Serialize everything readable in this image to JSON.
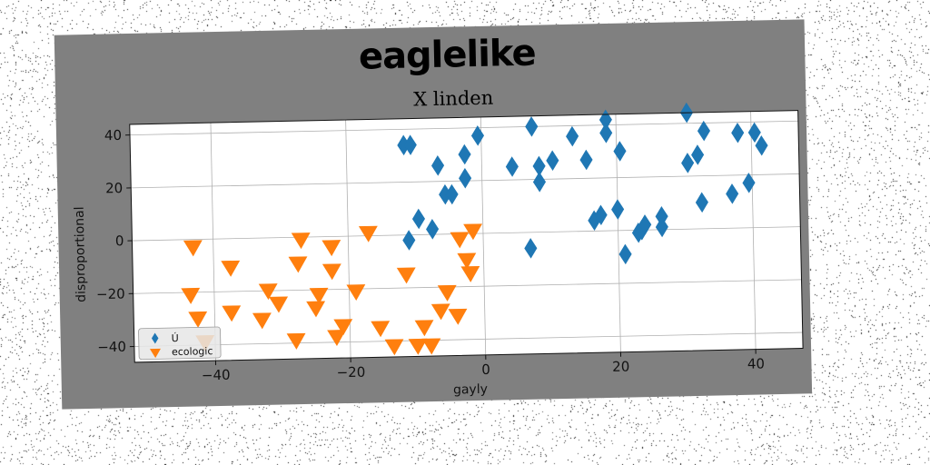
{
  "chart_data": {
    "type": "scatter",
    "suptitle": "eaglelike",
    "title": "X linden",
    "xlabel": "gayly",
    "ylabel": "disproportional",
    "xlim": [
      -52,
      47
    ],
    "ylim": [
      -46,
      44
    ],
    "xticks": [
      -40,
      -20,
      0,
      20,
      40
    ],
    "yticks": [
      -40,
      -20,
      0,
      20,
      40
    ],
    "grid": true,
    "legend_position": "lower-left",
    "series": [
      {
        "name": "Ú",
        "marker": "diamond",
        "color": "#1f77b4",
        "points": [
          [
            -11.5,
            34
          ],
          [
            -10.5,
            34
          ],
          [
            -11,
            -2
          ],
          [
            -9.5,
            6
          ],
          [
            -7.5,
            2
          ],
          [
            -6.5,
            26
          ],
          [
            -5.5,
            15
          ],
          [
            -4.5,
            15
          ],
          [
            -2.5,
            30
          ],
          [
            -2.5,
            21
          ],
          [
            -0.5,
            37
          ],
          [
            4.5,
            25
          ],
          [
            7,
            -6
          ],
          [
            7.5,
            40
          ],
          [
            8.5,
            25
          ],
          [
            8.5,
            19
          ],
          [
            10.5,
            27
          ],
          [
            13.5,
            36
          ],
          [
            15.5,
            27
          ],
          [
            16.5,
            4
          ],
          [
            17.5,
            6
          ],
          [
            18.5,
            42
          ],
          [
            18.5,
            37
          ],
          [
            20,
            8
          ],
          [
            20.5,
            30
          ],
          [
            21,
            -9
          ],
          [
            23,
            -1
          ],
          [
            23.5,
            0
          ],
          [
            24,
            2
          ],
          [
            26.5,
            5
          ],
          [
            26.5,
            1
          ],
          [
            30.5,
            44
          ],
          [
            30.5,
            25
          ],
          [
            32,
            28
          ],
          [
            33,
            37
          ],
          [
            32.5,
            10
          ],
          [
            37,
            13
          ],
          [
            38,
            36
          ],
          [
            39.5,
            17
          ],
          [
            40.5,
            36
          ],
          [
            41.5,
            31
          ]
        ]
      },
      {
        "name": "ecologic",
        "marker": "triangle_down",
        "color": "#ff7f0e",
        "points": [
          [
            -43,
            -3
          ],
          [
            -43.5,
            -21
          ],
          [
            -42.5,
            -30
          ],
          [
            -41.5,
            -39
          ],
          [
            -37.5,
            -11
          ],
          [
            -37.5,
            -28
          ],
          [
            -33,
            -31
          ],
          [
            -32,
            -20
          ],
          [
            -30.5,
            -25
          ],
          [
            -28,
            -39
          ],
          [
            -27.5,
            -10
          ],
          [
            -27,
            -1
          ],
          [
            -25,
            -27
          ],
          [
            -24.5,
            -22
          ],
          [
            -22.5,
            -13
          ],
          [
            -22.5,
            -4
          ],
          [
            -22,
            -38
          ],
          [
            -21,
            -34
          ],
          [
            -19,
            -21
          ],
          [
            -17,
            1
          ],
          [
            -15.5,
            -35
          ],
          [
            -13.5,
            -42
          ],
          [
            -11.5,
            -15
          ],
          [
            -10,
            -42
          ],
          [
            -9,
            -35
          ],
          [
            -8,
            -42
          ],
          [
            -6.5,
            -29
          ],
          [
            -5.5,
            -22
          ],
          [
            -4,
            -31
          ],
          [
            -3.5,
            -2
          ],
          [
            -2.5,
            -10
          ],
          [
            -2,
            -15
          ],
          [
            -1.5,
            1
          ]
        ]
      }
    ]
  }
}
